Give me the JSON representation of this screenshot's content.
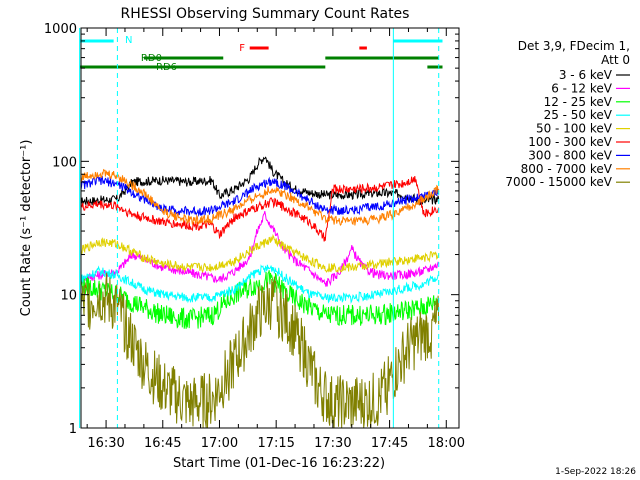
{
  "chart_data": {
    "type": "line",
    "title": "RHESSI Observing Summary Count Rates",
    "xlabel": "Start Time (01-Dec-16 16:23:22)",
    "ylabel": "Count Rate (s⁻¹ detector⁻¹)",
    "xlim": [
      "16:23:22",
      "18:03:22"
    ],
    "ylim": [
      1,
      1000
    ],
    "yscale": "log",
    "x_ticks": [
      "16:30",
      "16:45",
      "17:00",
      "17:15",
      "17:30",
      "17:45",
      "18:00"
    ],
    "y_ticks": [
      "1",
      "10",
      "100",
      "1000"
    ],
    "footer": "1-Sep-2022 18:26",
    "legend_header": [
      "Det 3,9, FDecim 1,",
      "Att 0"
    ],
    "legend_position": "right",
    "series": [
      {
        "name": "3 - 6 keV",
        "color": "#000000",
        "x": [
          "16:23",
          "16:33",
          "16:37",
          "16:45",
          "16:52",
          "16:58",
          "17:00",
          "17:04",
          "17:08",
          "17:10",
          "17:12",
          "17:14",
          "17:17",
          "17:20",
          "17:24",
          "17:28",
          "17:35",
          "17:42",
          "17:48",
          "17:54",
          "17:58"
        ],
        "values": [
          50,
          52,
          70,
          72,
          70,
          72,
          55,
          62,
          75,
          95,
          110,
          85,
          70,
          62,
          58,
          56,
          56,
          58,
          57,
          50,
          52
        ]
      },
      {
        "name": "6 - 12 keV",
        "color": "#ff00ff",
        "x": [
          "16:23",
          "16:33",
          "16:37",
          "16:41",
          "16:45",
          "16:50",
          "16:55",
          "17:00",
          "17:04",
          "17:08",
          "17:10",
          "17:12",
          "17:14",
          "17:17",
          "17:20",
          "17:24",
          "17:28",
          "17:32",
          "17:35",
          "17:38",
          "17:42",
          "17:48",
          "17:54",
          "17:58"
        ],
        "values": [
          13,
          15,
          20,
          18,
          16,
          15,
          14,
          13,
          15,
          19,
          30,
          40,
          32,
          22,
          18,
          15,
          12,
          15,
          22,
          16,
          14,
          14,
          15,
          17
        ]
      },
      {
        "name": "12 - 25 keV",
        "color": "#00ff00",
        "x": [
          "16:23",
          "16:33",
          "16:40",
          "16:45",
          "16:52",
          "16:58",
          "17:04",
          "17:10",
          "17:14",
          "17:18",
          "17:24",
          "17:28",
          "17:35",
          "17:42",
          "17:48",
          "17:54",
          "17:58"
        ],
        "values": [
          12,
          10,
          8,
          7,
          6.5,
          7,
          10,
          12,
          13,
          10,
          8,
          7,
          7,
          7,
          7.5,
          8,
          9
        ]
      },
      {
        "name": "25 - 50 keV",
        "color": "#00ffff",
        "x": [
          "16:23",
          "16:28",
          "16:33",
          "16:40",
          "16:45",
          "16:52",
          "16:58",
          "17:04",
          "17:10",
          "17:14",
          "17:18",
          "17:24",
          "17:28",
          "17:35",
          "17:42",
          "17:48",
          "17:54",
          "17:58"
        ],
        "values": [
          13,
          15,
          14,
          11,
          10,
          9.5,
          9.5,
          11,
          15,
          16,
          13,
          10,
          9.5,
          9.5,
          10,
          11,
          12,
          14
        ]
      },
      {
        "name": "50 - 100 keV",
        "color": "#e0d000",
        "x": [
          "16:23",
          "16:28",
          "16:33",
          "16:40",
          "16:45",
          "16:52",
          "16:58",
          "17:04",
          "17:10",
          "17:14",
          "17:18",
          "17:24",
          "17:28",
          "17:35",
          "17:42",
          "17:48",
          "17:54",
          "17:58"
        ],
        "values": [
          21,
          25,
          24,
          19,
          17,
          16,
          16,
          18,
          23,
          26,
          22,
          18,
          16,
          16,
          17,
          18,
          19,
          20
        ]
      },
      {
        "name": "100 - 300 keV",
        "color": "#ff0000",
        "x": [
          "16:23",
          "16:28",
          "16:33",
          "16:37",
          "16:45",
          "16:52",
          "16:58",
          "17:00",
          "17:04",
          "17:10",
          "17:14",
          "17:18",
          "17:24",
          "17:28",
          "17:30",
          "17:35",
          "17:42",
          "17:48",
          "17:52",
          "17:54",
          "17:58"
        ],
        "values": [
          45,
          48,
          46,
          40,
          35,
          33,
          33,
          28,
          38,
          45,
          50,
          44,
          35,
          26,
          62,
          62,
          64,
          68,
          75,
          40,
          45
        ]
      },
      {
        "name": "300 - 800 keV",
        "color": "#0000ff",
        "x": [
          "16:23",
          "16:28",
          "16:33",
          "16:40",
          "16:45",
          "16:52",
          "16:58",
          "17:04",
          "17:10",
          "17:14",
          "17:18",
          "17:24",
          "17:28",
          "17:35",
          "17:42",
          "17:48",
          "17:54",
          "17:58"
        ],
        "values": [
          65,
          72,
          68,
          52,
          44,
          42,
          43,
          50,
          65,
          72,
          64,
          50,
          43,
          43,
          46,
          50,
          55,
          60
        ]
      },
      {
        "name": "800 - 7000 keV",
        "color": "#ff8000",
        "x": [
          "16:23",
          "16:28",
          "16:33",
          "16:40",
          "16:45",
          "16:52",
          "16:58",
          "17:04",
          "17:10",
          "17:14",
          "17:18",
          "17:24",
          "17:28",
          "17:35",
          "17:42",
          "17:48",
          "17:54",
          "17:58"
        ],
        "values": [
          75,
          82,
          78,
          58,
          42,
          36,
          37,
          44,
          55,
          62,
          56,
          44,
          37,
          35,
          37,
          42,
          52,
          62
        ]
      },
      {
        "name": "7000 - 15000 keV",
        "color": "#808000",
        "x": [
          "16:23",
          "16:28",
          "16:33",
          "16:36",
          "16:40",
          "16:45",
          "16:52",
          "16:58",
          "17:02",
          "17:06",
          "17:10",
          "17:14",
          "17:18",
          "17:22",
          "17:26",
          "17:30",
          "17:35",
          "17:42",
          "17:46",
          "17:50",
          "17:54",
          "17:58"
        ],
        "values": [
          8,
          10,
          8,
          5,
          3,
          2,
          1.5,
          1.6,
          2.5,
          4,
          7,
          9,
          6.5,
          4,
          2,
          1.5,
          1.5,
          1.6,
          2.5,
          4,
          5,
          6
        ]
      }
    ],
    "state_bars": [
      {
        "label": "N",
        "color": "#00ffff",
        "segments": [
          [
            "16:23",
            "16:32"
          ],
          [
            "17:46",
            "17:59"
          ]
        ]
      },
      {
        "label": "F",
        "color": "#ff0000",
        "segments": [
          [
            "17:08",
            "17:13"
          ],
          [
            "17:37",
            "17:39"
          ]
        ]
      },
      {
        "label": "RD0",
        "color": "#008000",
        "segments": [
          [
            "16:40",
            "17:01"
          ],
          [
            "17:28",
            "17:58"
          ]
        ]
      },
      {
        "label": "RD6",
        "color": "#008000",
        "segments": [
          [
            "16:23",
            "17:28"
          ],
          [
            "17:55",
            "17:59"
          ]
        ]
      }
    ],
    "saa_boundaries": [
      "16:23",
      "16:33",
      "17:46",
      "17:58"
    ]
  }
}
